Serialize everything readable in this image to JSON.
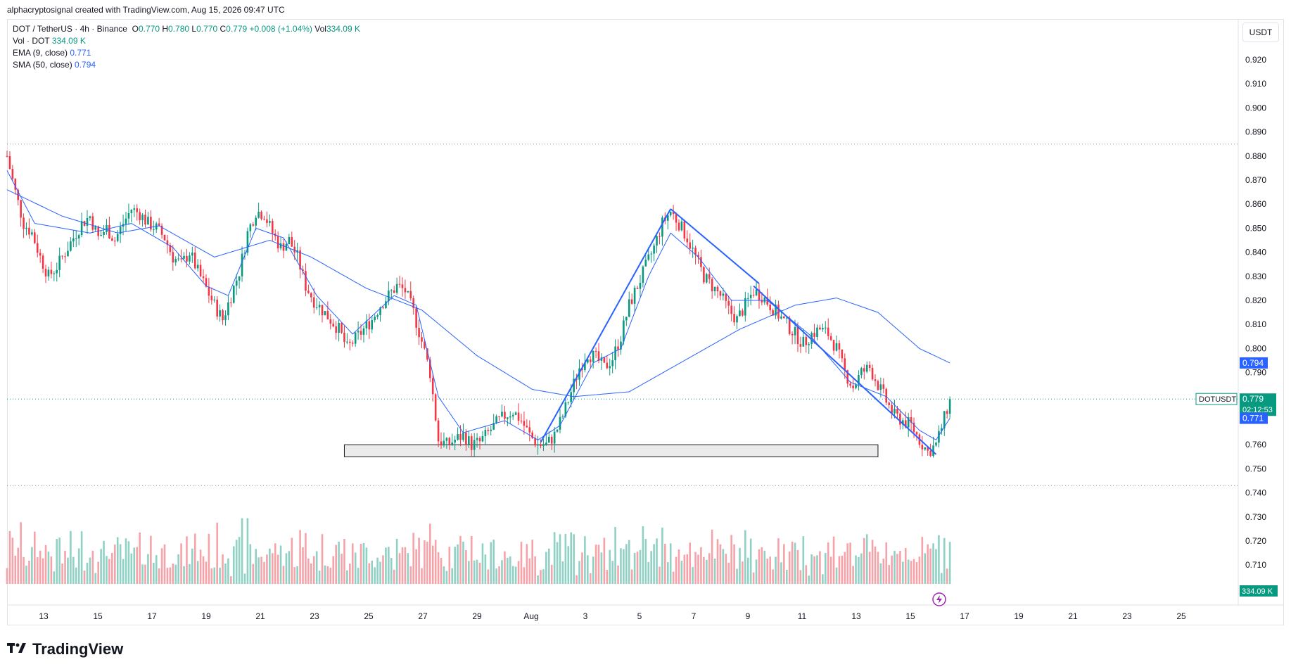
{
  "header": {
    "attribution": "alphacryptosignal created with TradingView.com, Aug 15, 2026 09:47 UTC"
  },
  "legend": {
    "symbol": "DOT / TetherUS · 4h · Binance",
    "o_label": "O",
    "o_value": "0.770",
    "h_label": "H",
    "h_value": "0.780",
    "l_label": "L",
    "l_value": "0.770",
    "c_label": "C",
    "c_value": "0.779",
    "change": "+0.008 (+1.04%)",
    "vol_label": "Vol",
    "vol_value": "334.09 K",
    "vol_line_label": "Vol · DOT",
    "vol_line_value": "334.09 K",
    "ema_label": "EMA (9, close)",
    "ema_value": "0.771",
    "sma_label": "SMA (50, close)",
    "sma_value": "0.794"
  },
  "currency": "USDT",
  "footer": {
    "brand": "TradingView"
  },
  "colors": {
    "up": "#089981",
    "down": "#f23645",
    "up_vol": "#8fd1c4",
    "down_vol": "#f5a3a9",
    "line": "#2962ff"
  },
  "chart_data": {
    "type": "candlestick",
    "title": "DOT / TetherUS · 4h · Binance",
    "ylim": [
      0.7,
      0.93
    ],
    "y_ticks": [
      "0.920",
      "0.910",
      "0.900",
      "0.890",
      "0.880",
      "0.870",
      "0.860",
      "0.850",
      "0.840",
      "0.830",
      "0.820",
      "0.810",
      "0.800",
      "0.790",
      "0.760",
      "0.750",
      "0.740",
      "0.730",
      "0.720",
      "0.710"
    ],
    "x_ticks": [
      "13",
      "15",
      "17",
      "19",
      "21",
      "23",
      "25",
      "27",
      "29",
      "Aug",
      "3",
      "5",
      "7",
      "9",
      "11",
      "13",
      "15",
      "17",
      "19",
      "21",
      "23",
      "25"
    ],
    "price_path": [
      [
        0,
        0.88
      ],
      [
        3,
        0.865
      ],
      [
        6,
        0.852
      ],
      [
        9,
        0.848
      ],
      [
        12,
        0.838
      ],
      [
        15,
        0.83
      ],
      [
        18,
        0.834
      ],
      [
        21,
        0.84
      ],
      [
        24,
        0.846
      ],
      [
        27,
        0.852
      ],
      [
        30,
        0.855
      ],
      [
        33,
        0.846
      ],
      [
        36,
        0.85
      ],
      [
        39,
        0.845
      ],
      [
        42,
        0.852
      ],
      [
        45,
        0.858
      ],
      [
        48,
        0.856
      ],
      [
        51,
        0.852
      ],
      [
        54,
        0.85
      ],
      [
        57,
        0.846
      ],
      [
        60,
        0.838
      ],
      [
        63,
        0.835
      ],
      [
        66,
        0.84
      ],
      [
        69,
        0.832
      ],
      [
        72,
        0.825
      ],
      [
        75,
        0.818
      ],
      [
        78,
        0.812
      ],
      [
        81,
        0.822
      ],
      [
        84,
        0.832
      ],
      [
        87,
        0.848
      ],
      [
        90,
        0.857
      ],
      [
        93,
        0.856
      ],
      [
        96,
        0.848
      ],
      [
        99,
        0.842
      ],
      [
        102,
        0.845
      ],
      [
        105,
        0.838
      ],
      [
        108,
        0.826
      ],
      [
        111,
        0.82
      ],
      [
        114,
        0.816
      ],
      [
        117,
        0.812
      ],
      [
        120,
        0.808
      ],
      [
        123,
        0.8
      ],
      [
        126,
        0.804
      ],
      [
        129,
        0.808
      ],
      [
        132,
        0.812
      ],
      [
        135,
        0.818
      ],
      [
        138,
        0.822
      ],
      [
        141,
        0.826
      ],
      [
        144,
        0.824
      ],
      [
        147,
        0.815
      ],
      [
        150,
        0.803
      ],
      [
        153,
        0.79
      ],
      [
        156,
        0.762
      ],
      [
        159,
        0.76
      ],
      [
        162,
        0.762
      ],
      [
        165,
        0.764
      ],
      [
        168,
        0.76
      ],
      [
        171,
        0.761
      ],
      [
        174,
        0.765
      ],
      [
        177,
        0.769
      ],
      [
        180,
        0.772
      ],
      [
        183,
        0.774
      ],
      [
        186,
        0.77
      ],
      [
        189,
        0.764
      ],
      [
        192,
        0.76
      ],
      [
        195,
        0.76
      ],
      [
        198,
        0.764
      ],
      [
        201,
        0.772
      ],
      [
        204,
        0.782
      ],
      [
        207,
        0.792
      ],
      [
        210,
        0.798
      ],
      [
        213,
        0.796
      ],
      [
        216,
        0.792
      ],
      [
        219,
        0.796
      ],
      [
        222,
        0.805
      ],
      [
        225,
        0.818
      ],
      [
        228,
        0.826
      ],
      [
        231,
        0.834
      ],
      [
        234,
        0.842
      ],
      [
        237,
        0.852
      ],
      [
        240,
        0.857
      ],
      [
        243,
        0.852
      ],
      [
        246,
        0.846
      ],
      [
        249,
        0.838
      ],
      [
        252,
        0.83
      ],
      [
        255,
        0.826
      ],
      [
        258,
        0.822
      ],
      [
        261,
        0.816
      ],
      [
        264,
        0.812
      ],
      [
        267,
        0.818
      ],
      [
        270,
        0.824
      ],
      [
        273,
        0.822
      ],
      [
        276,
        0.818
      ],
      [
        279,
        0.814
      ],
      [
        282,
        0.81
      ],
      [
        285,
        0.806
      ],
      [
        288,
        0.802
      ],
      [
        291,
        0.806
      ],
      [
        294,
        0.808
      ],
      [
        297,
        0.806
      ],
      [
        300,
        0.8
      ],
      [
        303,
        0.79
      ],
      [
        306,
        0.784
      ],
      [
        309,
        0.79
      ],
      [
        312,
        0.792
      ],
      [
        315,
        0.785
      ],
      [
        318,
        0.778
      ],
      [
        321,
        0.772
      ],
      [
        324,
        0.77
      ],
      [
        327,
        0.768
      ],
      [
        330,
        0.762
      ],
      [
        333,
        0.757
      ],
      [
        336,
        0.76
      ],
      [
        339,
        0.771
      ],
      [
        341,
        0.779
      ]
    ],
    "ema9": [
      [
        0,
        0.874
      ],
      [
        10,
        0.852
      ],
      [
        30,
        0.848
      ],
      [
        45,
        0.852
      ],
      [
        60,
        0.842
      ],
      [
        72,
        0.826
      ],
      [
        80,
        0.822
      ],
      [
        90,
        0.85
      ],
      [
        100,
        0.846
      ],
      [
        112,
        0.822
      ],
      [
        125,
        0.806
      ],
      [
        140,
        0.822
      ],
      [
        148,
        0.818
      ],
      [
        156,
        0.78
      ],
      [
        165,
        0.765
      ],
      [
        180,
        0.77
      ],
      [
        192,
        0.762
      ],
      [
        200,
        0.768
      ],
      [
        212,
        0.794
      ],
      [
        222,
        0.8
      ],
      [
        232,
        0.83
      ],
      [
        240,
        0.848
      ],
      [
        250,
        0.838
      ],
      [
        262,
        0.82
      ],
      [
        275,
        0.82
      ],
      [
        290,
        0.806
      ],
      [
        305,
        0.786
      ],
      [
        318,
        0.78
      ],
      [
        330,
        0.766
      ],
      [
        336,
        0.762
      ],
      [
        341,
        0.771
      ]
    ],
    "sma50": [
      [
        0,
        0.866
      ],
      [
        20,
        0.855
      ],
      [
        40,
        0.848
      ],
      [
        55,
        0.851
      ],
      [
        75,
        0.838
      ],
      [
        95,
        0.845
      ],
      [
        110,
        0.838
      ],
      [
        130,
        0.825
      ],
      [
        150,
        0.816
      ],
      [
        170,
        0.797
      ],
      [
        190,
        0.783
      ],
      [
        205,
        0.78
      ],
      [
        225,
        0.782
      ],
      [
        245,
        0.795
      ],
      [
        265,
        0.808
      ],
      [
        285,
        0.818
      ],
      [
        300,
        0.821
      ],
      [
        315,
        0.815
      ],
      [
        330,
        0.8
      ],
      [
        341,
        0.794
      ]
    ],
    "trendlines": [
      {
        "from": [
          193,
          0.761
        ],
        "to": [
          240,
          0.858
        ]
      },
      {
        "from": [
          240,
          0.858
        ],
        "to": [
          272,
          0.827
        ]
      },
      {
        "from": [
          270,
          0.826
        ],
        "to": [
          336,
          0.756
        ]
      }
    ],
    "support_zone": {
      "from_x": 122,
      "to_x": 315,
      "y_low": 0.755,
      "y_high": 0.76
    },
    "dotted_levels": [
      0.885,
      0.743
    ],
    "last_price": 0.779,
    "price_tags": [
      {
        "label": "0.794",
        "value": 0.794
      },
      {
        "label": "DOTUSDT",
        "value": 0.779,
        "extra": "0.779",
        "countdown": "02:12:53"
      },
      {
        "label": "0.771",
        "value": 0.771
      }
    ],
    "volume_tag": "334.09 K"
  }
}
